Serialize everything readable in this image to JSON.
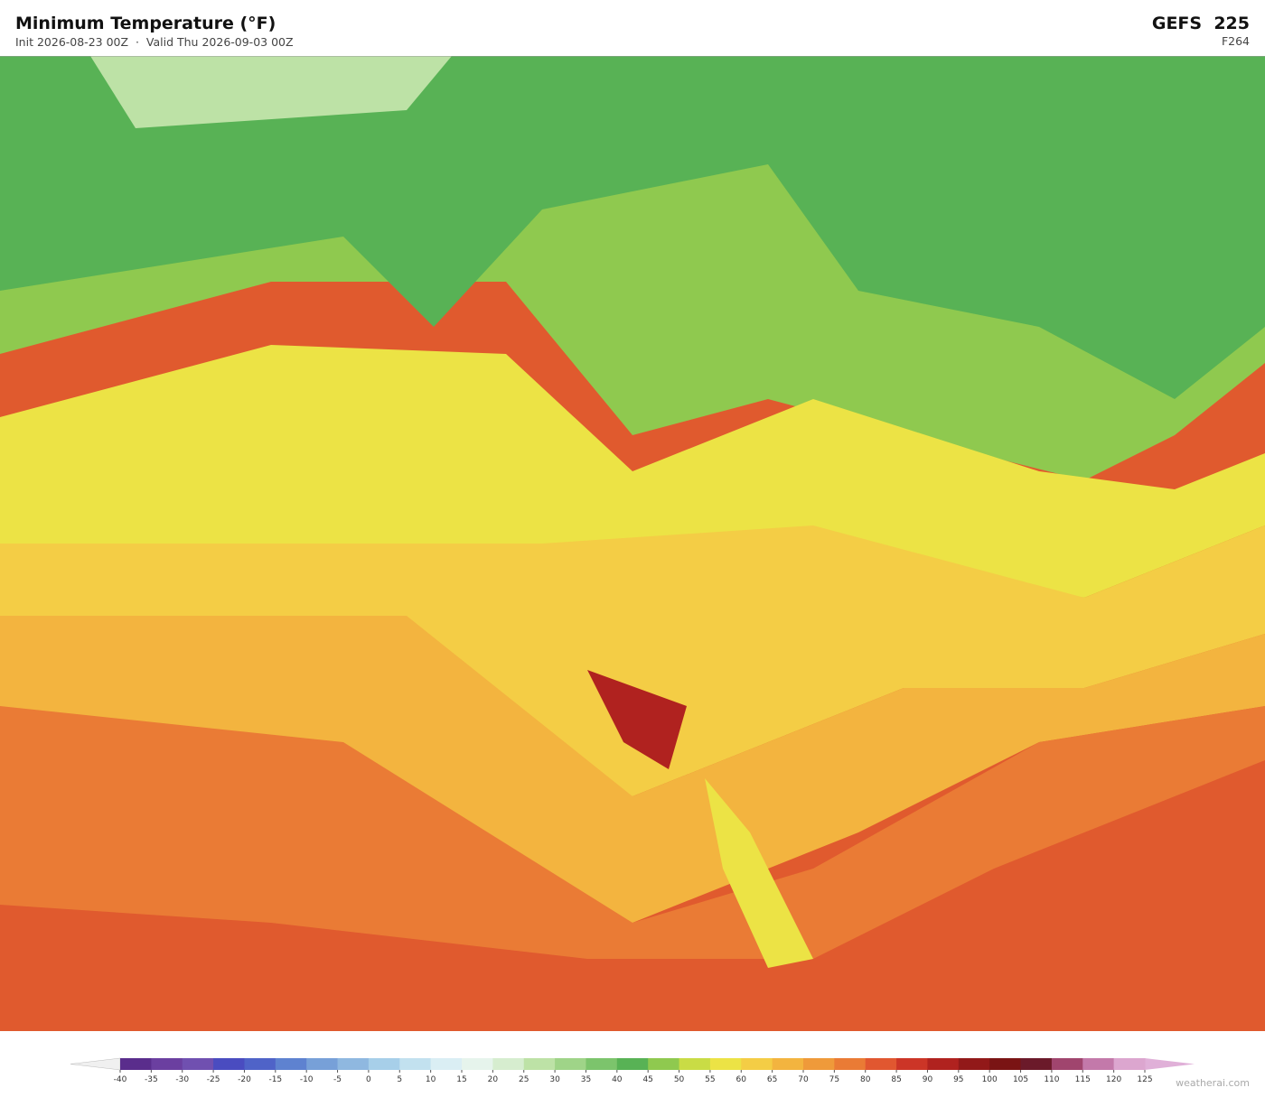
{
  "header": {
    "title": "Minimum Temperature  (°F)",
    "subtitle": "Init 2026-08-23 00Z  ·  Valid Thu 2026-09-03 00Z",
    "model": "GEFS  225",
    "forecast_hour": "F264"
  },
  "colorbar": {
    "ticks": [
      -40,
      -35,
      -30,
      -25,
      -20,
      -15,
      -10,
      -5,
      0,
      5,
      10,
      15,
      20,
      25,
      30,
      35,
      40,
      45,
      50,
      55,
      60,
      65,
      70,
      75,
      80,
      85,
      90,
      95,
      100,
      105,
      110,
      115,
      120,
      125
    ],
    "colors": [
      "#5a2d8c",
      "#6b3fa0",
      "#7050b0",
      "#4a4cc0",
      "#4f63c8",
      "#5e82d0",
      "#77a0d8",
      "#8fb8e0",
      "#a7cfe9",
      "#c2e1ef",
      "#daeef4",
      "#e6f4ec",
      "#d6edcf",
      "#bde2a6",
      "#9fd488",
      "#7cc46c",
      "#58b255",
      "#8fc94f",
      "#c9dc45",
      "#ece345",
      "#f4cd45",
      "#f3b43f",
      "#ef9a3a",
      "#ea7b35",
      "#e15730",
      "#cc3527",
      "#b0221f",
      "#921919",
      "#7a1414",
      "#6b1a2a",
      "#a0456e",
      "#c379aa",
      "#dca6cf"
    ],
    "under_color": "#f0f0f0",
    "over_color": "#e0b0d8"
  },
  "watermark": "weatherai.com"
}
